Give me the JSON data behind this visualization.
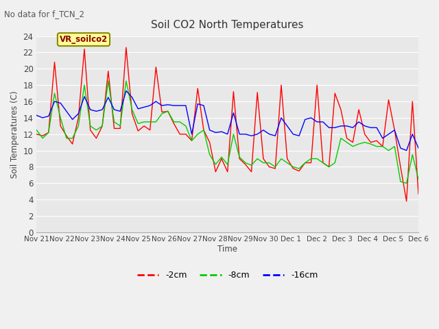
{
  "title": "Soil CO2 North Temperatures",
  "subtitle": "No data for f_TCN_2",
  "ylabel": "Soil Temperatures (C)",
  "xlabel": "Time",
  "legend_label": "VR_soilco2",
  "ylim": [
    0,
    24
  ],
  "fig_bg_color": "#f0f0f0",
  "plot_bg_color": "#e8e8e8",
  "xtick_labels": [
    "Nov 21",
    "Nov 22",
    "Nov 23",
    "Nov 24",
    "Nov 25",
    "Nov 26",
    "Nov 27",
    "Nov 28",
    "Nov 29",
    "Nov 30",
    "Dec 1",
    "Dec 2",
    "Dec 3",
    "Dec 4",
    "Dec 5",
    "Dec 6"
  ],
  "series_red": [
    12.0,
    11.8,
    12.2,
    20.8,
    13.0,
    11.8,
    10.8,
    14.0,
    22.4,
    12.5,
    11.5,
    13.0,
    19.7,
    12.7,
    12.7,
    22.6,
    14.5,
    12.4,
    13.0,
    12.5,
    20.2,
    14.7,
    14.8,
    13.3,
    12.0,
    12.0,
    11.2,
    17.6,
    12.5,
    11.0,
    7.4,
    9.0,
    7.4,
    17.2,
    9.0,
    8.3,
    7.4,
    17.1,
    9.0,
    8.0,
    7.8,
    18.0,
    9.0,
    7.8,
    7.5,
    8.5,
    8.5,
    18.0,
    8.5,
    8.0,
    17.0,
    15.0,
    11.5,
    11.0,
    15.0,
    12.0,
    11.0,
    11.2,
    10.5,
    16.2,
    12.5,
    8.0,
    3.8,
    16.0,
    4.7
  ],
  "series_green": [
    12.5,
    11.5,
    12.2,
    17.0,
    14.0,
    11.5,
    11.5,
    13.0,
    18.0,
    13.0,
    12.5,
    13.0,
    18.5,
    13.5,
    13.0,
    18.5,
    15.0,
    13.3,
    13.5,
    13.5,
    13.5,
    14.5,
    14.8,
    13.5,
    13.5,
    13.0,
    11.2,
    12.0,
    12.5,
    9.5,
    8.3,
    9.2,
    8.3,
    12.0,
    9.2,
    8.5,
    8.2,
    9.0,
    8.5,
    8.5,
    8.0,
    9.0,
    8.5,
    8.0,
    7.8,
    8.5,
    9.0,
    9.0,
    8.5,
    8.0,
    8.5,
    11.5,
    11.0,
    10.5,
    10.8,
    11.0,
    10.8,
    10.5,
    10.5,
    10.0,
    10.5,
    6.2,
    6.0,
    9.5,
    6.5
  ],
  "series_blue": [
    14.3,
    14.0,
    14.2,
    16.0,
    15.8,
    14.8,
    13.8,
    14.5,
    16.6,
    15.0,
    14.8,
    15.0,
    16.5,
    15.0,
    14.8,
    17.3,
    16.5,
    15.1,
    15.3,
    15.5,
    16.0,
    15.5,
    15.6,
    15.5,
    15.5,
    15.5,
    12.0,
    15.7,
    15.5,
    12.5,
    12.2,
    12.3,
    12.0,
    14.6,
    12.0,
    12.0,
    11.8,
    12.0,
    12.5,
    12.0,
    11.8,
    14.0,
    13.0,
    12.0,
    11.8,
    13.8,
    14.0,
    13.5,
    13.5,
    12.8,
    12.8,
    13.0,
    13.0,
    12.8,
    13.5,
    13.0,
    12.8,
    12.8,
    11.5,
    12.0,
    12.5,
    10.3,
    10.0,
    12.0,
    10.3
  ]
}
